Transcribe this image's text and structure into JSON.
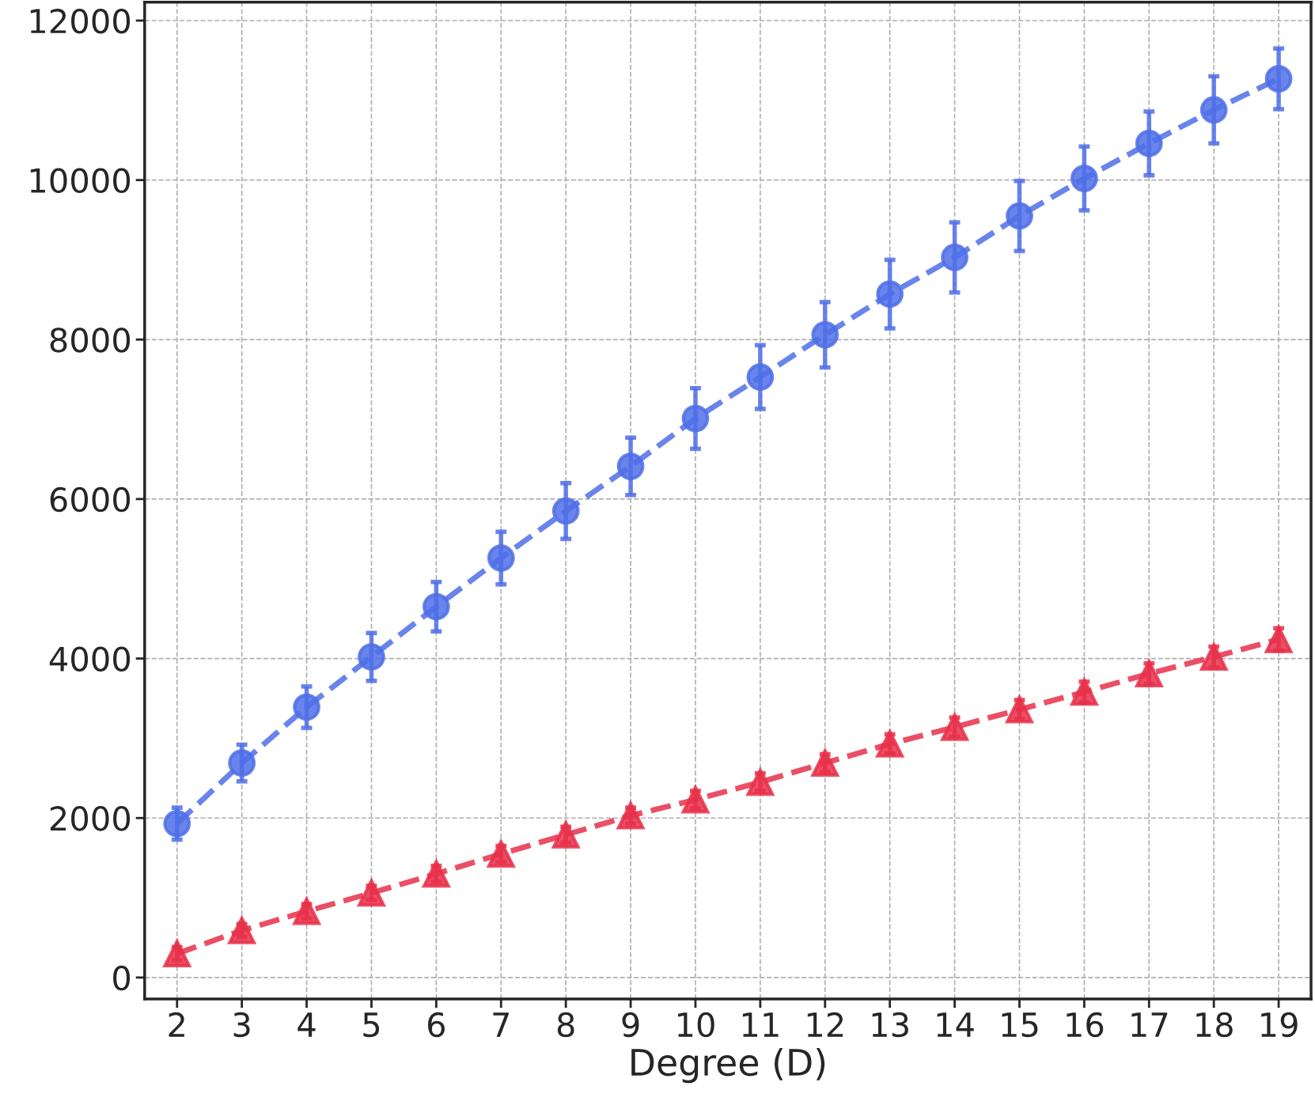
{
  "chart_data": {
    "type": "line",
    "xlabel": "Degree (D)",
    "x": [
      2,
      3,
      4,
      5,
      6,
      7,
      8,
      9,
      10,
      11,
      12,
      13,
      14,
      15,
      16,
      17,
      18,
      19
    ],
    "series": [
      {
        "color": "#4f6ee8",
        "marker": "circle",
        "values": [
          1930,
          2690,
          3390,
          4020,
          4650,
          5260,
          5850,
          6410,
          7010,
          7530,
          8060,
          8570,
          9030,
          9550,
          10020,
          10460,
          10880,
          11270
        ],
        "errors": [
          200,
          230,
          260,
          300,
          310,
          330,
          350,
          360,
          380,
          400,
          410,
          430,
          440,
          440,
          400,
          400,
          420,
          380
        ]
      },
      {
        "color": "#e8304a",
        "marker": "triangle",
        "values": [
          300,
          590,
          830,
          1060,
          1300,
          1550,
          1790,
          2030,
          2230,
          2450,
          2690,
          2930,
          3140,
          3360,
          3580,
          3810,
          4020,
          4240
        ],
        "errors": [
          80,
          80,
          90,
          90,
          100,
          100,
          100,
          100,
          110,
          110,
          110,
          120,
          120,
          120,
          130,
          130,
          130,
          140
        ]
      }
    ],
    "xlim": [
      1.5,
      19.5
    ],
    "xticks": [
      2,
      3,
      4,
      5,
      6,
      7,
      8,
      9,
      10,
      11,
      12,
      13,
      14,
      15,
      16,
      17,
      18,
      19
    ],
    "ylim": [
      -270,
      12230
    ],
    "yticks": [
      0,
      2000,
      4000,
      6000,
      8000,
      10000,
      12000
    ],
    "grid": true,
    "line_style": "dashed"
  }
}
